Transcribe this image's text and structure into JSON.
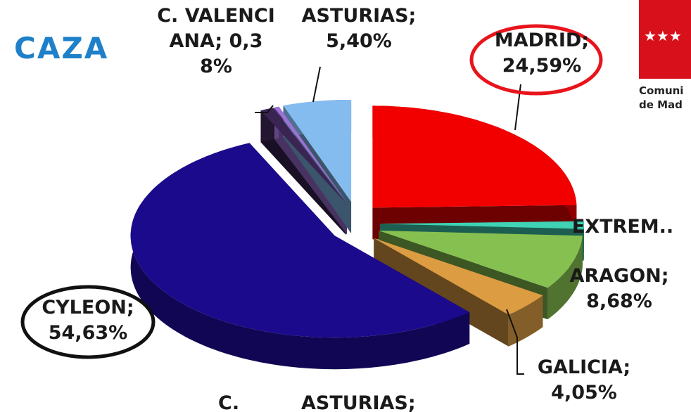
{
  "title": "CAZA",
  "logo": {
    "lines": [
      "Comuni",
      "de Mad"
    ]
  },
  "overflow_labels": [
    "C.",
    "ASTURIAS;"
  ],
  "chart_data": {
    "type": "pie3d",
    "categories": [
      "MADRID;",
      "EXTREM..",
      "ARAGON;",
      "GALICIA;",
      "CYLEON;",
      null,
      "C. VALENCIANA;",
      "ASTURIAS;"
    ],
    "values": [
      24.59,
      1.2,
      8.68,
      4.05,
      54.63,
      1.07,
      0.38,
      5.4
    ],
    "value_labels": [
      "24,59%",
      null,
      "8,68%",
      "4,05%",
      "54,63%",
      null,
      "0,38%",
      "5,40%"
    ],
    "colors": [
      "#f20000",
      "#3fd2b4",
      "#86c050",
      "#dc9c42",
      "#1c0a8c",
      "#3a2452",
      "#a070d8",
      "#84bcf0"
    ]
  }
}
